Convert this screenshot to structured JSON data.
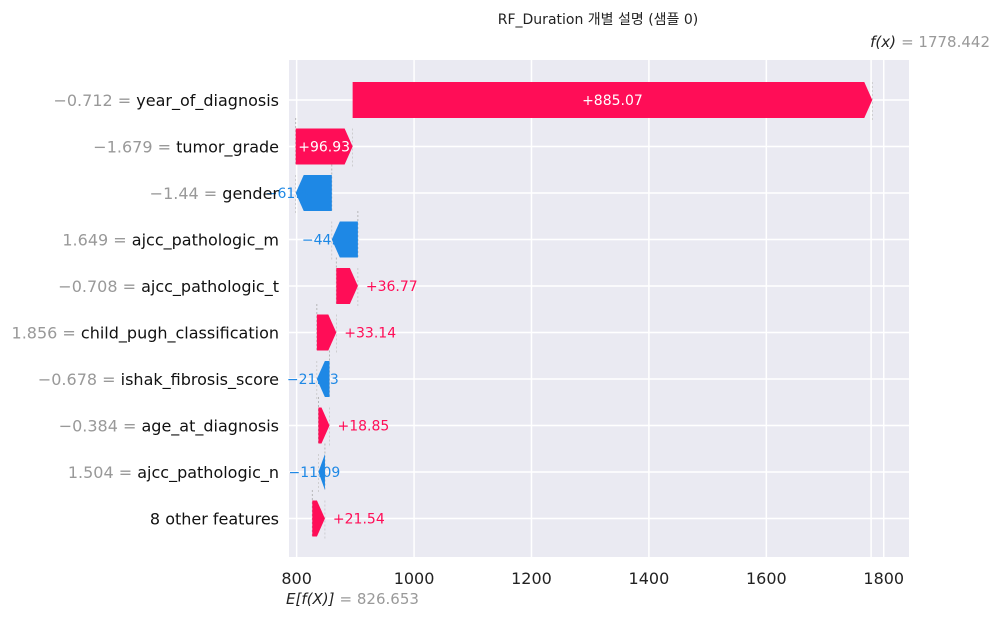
{
  "chart_data": {
    "type": "waterfall",
    "title": "RF_Duration 개별 설명 (샘플 0)",
    "fx_label": "f(x)",
    "fx_value": "1778.442",
    "base_label": "E[f(X)]",
    "base_value": "826.653",
    "fx": 1778.442,
    "base": 826.653,
    "xlim": [
      787,
      1843
    ],
    "xticks": [
      "800",
      "1000",
      "1200",
      "1400",
      "1600",
      "1800"
    ],
    "tick_values": [
      800,
      1000,
      1200,
      1400,
      1600,
      1800
    ],
    "grid": true,
    "colors": {
      "positive": "#ff0d57",
      "negative": "#1e88e5",
      "background": "#eaeaf2"
    },
    "rows": [
      {
        "value": "−0.712",
        "feature": "year_of_diagnosis",
        "contribution": 885.07,
        "label": "+885.07"
      },
      {
        "value": "−1.679",
        "feature": "tumor_grade",
        "contribution": 96.93,
        "label": "+96.93"
      },
      {
        "value": "−1.44",
        "feature": "gender",
        "contribution": -61.47,
        "label": "−61.47"
      },
      {
        "value": "1.649",
        "feature": "ajcc_pathologic_m",
        "contribution": -44.42,
        "label": "−44.42"
      },
      {
        "value": "−0.708",
        "feature": "ajcc_pathologic_t",
        "contribution": 36.77,
        "label": "+36.77"
      },
      {
        "value": "1.856",
        "feature": "child_pugh_classification",
        "contribution": 33.14,
        "label": "+33.14"
      },
      {
        "value": "−0.678",
        "feature": "ishak_fibrosis_score",
        "contribution": -21.53,
        "label": "−21.53"
      },
      {
        "value": "−0.384",
        "feature": "age_at_diagnosis",
        "contribution": 18.85,
        "label": "+18.85"
      },
      {
        "value": "1.504",
        "feature": "ajcc_pathologic_n",
        "contribution": -11.09,
        "label": "−11.09"
      },
      {
        "value": "",
        "feature": "8 other features",
        "contribution": 21.54,
        "label": "+21.54"
      }
    ]
  }
}
